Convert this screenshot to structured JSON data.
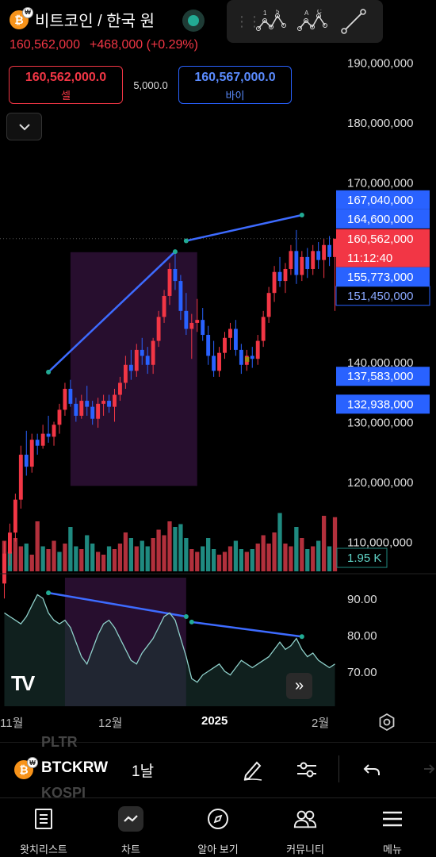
{
  "header": {
    "title": "비트코인 / 한국 원",
    "coin_icon": "bitcoin-krw-icon",
    "last_price": "160,562,000",
    "change": "+468,000 (+0.29%)",
    "market_status_color": "#22ab94"
  },
  "trade": {
    "sell_price": "160,562,000.0",
    "sell_label": "셀",
    "spread": "5,000.0",
    "buy_price": "160,567,000.0",
    "buy_label": "바이"
  },
  "drawing_toolbar": {
    "tools": [
      {
        "name": "xabcd-pattern-tool",
        "labels": [
          "1",
          "5"
        ]
      },
      {
        "name": "abcd-pattern-tool",
        "labels": [
          "A",
          "C"
        ]
      },
      {
        "name": "trend-line-tool"
      }
    ]
  },
  "colors": {
    "up": "#f23645",
    "down": "#2962ff",
    "volume_up": "#b2303c",
    "volume_down": "#1f8a80",
    "trend_line": "#3d6bff",
    "highlight_zone": "#2b0f33",
    "rsi_line": "#8ecfc9",
    "background": "#000000"
  },
  "chart_data": {
    "type": "candlestick",
    "price_axis": {
      "ticks": [
        "190,000,000",
        "180,000,000",
        "170,000,000",
        "140,000,000",
        "130,000,000",
        "120,000,000",
        "110,000,000"
      ],
      "tick_values": [
        190000000,
        180000000,
        170000000,
        140000000,
        130000000,
        120000000,
        110000000
      ]
    },
    "price_labels": [
      {
        "text": "167,040,000",
        "value": 167040000,
        "style": "blue"
      },
      {
        "text": "164,600,000",
        "value": 164600000,
        "style": "blue"
      },
      {
        "text": "160,562,000",
        "value": 160562000,
        "style": "red",
        "sub": "11:12:40"
      },
      {
        "text": "155,773,000",
        "value": 155773000,
        "style": "blue"
      },
      {
        "text": "151,450,000",
        "value": 151450000,
        "style": "outline"
      },
      {
        "text": "137,583,000",
        "value": 137583000,
        "style": "blue"
      },
      {
        "text": "132,938,000",
        "value": 132938000,
        "style": "blue"
      }
    ],
    "volume_label": "1.95 K",
    "rsi_axis": {
      "ticks": [
        "90.00",
        "80.00",
        "70.00"
      ],
      "tick_values": [
        90,
        80,
        70
      ]
    },
    "time_axis": {
      "labels": [
        "11월",
        "12월",
        "2025",
        "2월"
      ],
      "bold": [
        false,
        false,
        true,
        false
      ]
    },
    "trend_lines": [
      {
        "pane": "price",
        "from": {
          "i": 8,
          "v": 138300000
        },
        "to": {
          "i": 31,
          "v": 158400000
        }
      },
      {
        "pane": "price",
        "from": {
          "i": 33,
          "v": 160200000
        },
        "to": {
          "i": 54,
          "v": 164500000
        }
      },
      {
        "pane": "rsi",
        "from": {
          "i": 8,
          "v": 91.5
        },
        "to": {
          "i": 33,
          "v": 85
        }
      },
      {
        "pane": "rsi",
        "from": {
          "i": 34,
          "v": 83.5
        },
        "to": {
          "i": 54,
          "v": 79.5
        }
      }
    ],
    "highlight_zones": [
      {
        "pane": "price",
        "from_i": 12,
        "to_i": 35,
        "v_top": 158300000,
        "v_bottom": 119300000
      },
      {
        "pane": "rsi",
        "from_i": 11,
        "to_i": 33
      }
    ],
    "candles": [
      {
        "o": 103000000,
        "h": 110000000,
        "l": 100500000,
        "c": 108000000
      },
      {
        "o": 108000000,
        "h": 113000000,
        "l": 106000000,
        "c": 111500000
      },
      {
        "o": 111500000,
        "h": 118000000,
        "l": 110000000,
        "c": 117000000
      },
      {
        "o": 117000000,
        "h": 126000000,
        "l": 115500000,
        "c": 124500000
      },
      {
        "o": 124500000,
        "h": 128500000,
        "l": 121000000,
        "c": 122500000
      },
      {
        "o": 122500000,
        "h": 128000000,
        "l": 121500000,
        "c": 127000000
      },
      {
        "o": 127000000,
        "h": 128000000,
        "l": 124500000,
        "c": 126000000
      },
      {
        "o": 126000000,
        "h": 129500000,
        "l": 125500000,
        "c": 128000000
      },
      {
        "o": 128000000,
        "h": 131000000,
        "l": 126500000,
        "c": 127500000
      },
      {
        "o": 127500000,
        "h": 130000000,
        "l": 126000000,
        "c": 129500000
      },
      {
        "o": 129500000,
        "h": 133000000,
        "l": 128000000,
        "c": 132000000
      },
      {
        "o": 132000000,
        "h": 136500000,
        "l": 131000000,
        "c": 135500000
      },
      {
        "o": 135500000,
        "h": 137000000,
        "l": 132500000,
        "c": 133000000
      },
      {
        "o": 133000000,
        "h": 134000000,
        "l": 130000000,
        "c": 131000000
      },
      {
        "o": 131000000,
        "h": 134500000,
        "l": 130500000,
        "c": 133500000
      },
      {
        "o": 133500000,
        "h": 136000000,
        "l": 131000000,
        "c": 132500000
      },
      {
        "o": 132500000,
        "h": 133500000,
        "l": 129500000,
        "c": 130500000
      },
      {
        "o": 130500000,
        "h": 134000000,
        "l": 129000000,
        "c": 133000000
      },
      {
        "o": 133000000,
        "h": 134500000,
        "l": 131000000,
        "c": 133500000
      },
      {
        "o": 133500000,
        "h": 134500000,
        "l": 131500000,
        "c": 132500000
      },
      {
        "o": 132500000,
        "h": 135500000,
        "l": 130000000,
        "c": 134500000
      },
      {
        "o": 134500000,
        "h": 137500000,
        "l": 133500000,
        "c": 136500000
      },
      {
        "o": 136500000,
        "h": 141000000,
        "l": 135500000,
        "c": 139500000
      },
      {
        "o": 139500000,
        "h": 142000000,
        "l": 137000000,
        "c": 138500000
      },
      {
        "o": 138500000,
        "h": 143000000,
        "l": 137500000,
        "c": 142000000
      },
      {
        "o": 142000000,
        "h": 144000000,
        "l": 139500000,
        "c": 141000000
      },
      {
        "o": 141000000,
        "h": 142500000,
        "l": 138000000,
        "c": 139500000
      },
      {
        "o": 139500000,
        "h": 144000000,
        "l": 138000000,
        "c": 143500000
      },
      {
        "o": 143500000,
        "h": 148500000,
        "l": 142500000,
        "c": 147500000
      },
      {
        "o": 147500000,
        "h": 152000000,
        "l": 146500000,
        "c": 151000000
      },
      {
        "o": 151000000,
        "h": 156500000,
        "l": 149500000,
        "c": 155500000
      },
      {
        "o": 155500000,
        "h": 158000000,
        "l": 152000000,
        "c": 153500000
      },
      {
        "o": 153500000,
        "h": 154500000,
        "l": 147000000,
        "c": 148500000
      },
      {
        "o": 148500000,
        "h": 151500000,
        "l": 144500000,
        "c": 145500000
      },
      {
        "o": 145500000,
        "h": 148000000,
        "l": 140500000,
        "c": 146500000
      },
      {
        "o": 146500000,
        "h": 150500000,
        "l": 145000000,
        "c": 147000000
      },
      {
        "o": 147000000,
        "h": 149000000,
        "l": 143500000,
        "c": 144500000
      },
      {
        "o": 144500000,
        "h": 146000000,
        "l": 139500000,
        "c": 141000000
      },
      {
        "o": 141000000,
        "h": 143500000,
        "l": 137500000,
        "c": 138500000
      },
      {
        "o": 138500000,
        "h": 142500000,
        "l": 137500000,
        "c": 141500000
      },
      {
        "o": 141500000,
        "h": 145000000,
        "l": 140500000,
        "c": 144000000
      },
      {
        "o": 144000000,
        "h": 146500000,
        "l": 142000000,
        "c": 145500000
      },
      {
        "o": 145500000,
        "h": 147000000,
        "l": 141000000,
        "c": 142000000
      },
      {
        "o": 142000000,
        "h": 143000000,
        "l": 138000000,
        "c": 139500000
      },
      {
        "o": 139500000,
        "h": 142000000,
        "l": 138500000,
        "c": 141000000
      },
      {
        "o": 141000000,
        "h": 142500000,
        "l": 139000000,
        "c": 140500000
      },
      {
        "o": 140500000,
        "h": 144500000,
        "l": 139500000,
        "c": 143500000
      },
      {
        "o": 143500000,
        "h": 148500000,
        "l": 142500000,
        "c": 147500000
      },
      {
        "o": 147500000,
        "h": 152500000,
        "l": 146500000,
        "c": 151500000
      },
      {
        "o": 151500000,
        "h": 156000000,
        "l": 150000000,
        "c": 155000000
      },
      {
        "o": 155000000,
        "h": 157500000,
        "l": 152500000,
        "c": 153500000
      },
      {
        "o": 153500000,
        "h": 156500000,
        "l": 151500000,
        "c": 155500000
      },
      {
        "o": 155500000,
        "h": 159500000,
        "l": 154500000,
        "c": 158500000
      },
      {
        "o": 158500000,
        "h": 162000000,
        "l": 153000000,
        "c": 154500000
      },
      {
        "o": 154500000,
        "h": 158500000,
        "l": 153500000,
        "c": 157500000
      },
      {
        "o": 157500000,
        "h": 159000000,
        "l": 154000000,
        "c": 155500000
      },
      {
        "o": 155500000,
        "h": 159500000,
        "l": 154500000,
        "c": 158500000
      },
      {
        "o": 158500000,
        "h": 160000000,
        "l": 155500000,
        "c": 157000000
      },
      {
        "o": 157000000,
        "h": 160500000,
        "l": 154000000,
        "c": 159500000
      },
      {
        "o": 159500000,
        "h": 161000000,
        "l": 156000000,
        "c": 157500000
      },
      {
        "o": 157500000,
        "h": 160500000,
        "l": 148500000,
        "c": 160562000
      }
    ],
    "volume": [
      {
        "v": 1.1,
        "up": true
      },
      {
        "v": 0.7,
        "up": false
      },
      {
        "v": 1.2,
        "up": true
      },
      {
        "v": 0.9,
        "up": true
      },
      {
        "v": 1.0,
        "up": false
      },
      {
        "v": 0.6,
        "up": true
      },
      {
        "v": 1.8,
        "up": true
      },
      {
        "v": 0.9,
        "up": false
      },
      {
        "v": 0.8,
        "up": true
      },
      {
        "v": 1.1,
        "up": true
      },
      {
        "v": 0.7,
        "up": false
      },
      {
        "v": 1.0,
        "up": true
      },
      {
        "v": 1.6,
        "up": false
      },
      {
        "v": 0.9,
        "up": false
      },
      {
        "v": 0.8,
        "up": true
      },
      {
        "v": 1.3,
        "up": false
      },
      {
        "v": 1.0,
        "up": false
      },
      {
        "v": 0.7,
        "up": true
      },
      {
        "v": 0.6,
        "up": true
      },
      {
        "v": 0.9,
        "up": false
      },
      {
        "v": 0.8,
        "up": true
      },
      {
        "v": 1.0,
        "up": true
      },
      {
        "v": 1.4,
        "up": true
      },
      {
        "v": 1.2,
        "up": false
      },
      {
        "v": 0.9,
        "up": true
      },
      {
        "v": 1.1,
        "up": false
      },
      {
        "v": 0.9,
        "up": false
      },
      {
        "v": 1.2,
        "up": true
      },
      {
        "v": 1.5,
        "up": true
      },
      {
        "v": 1.3,
        "up": true
      },
      {
        "v": 1.8,
        "up": true
      },
      {
        "v": 1.6,
        "up": false
      },
      {
        "v": 1.7,
        "up": false
      },
      {
        "v": 1.2,
        "up": false
      },
      {
        "v": 0.8,
        "up": true
      },
      {
        "v": 0.7,
        "up": true
      },
      {
        "v": 0.9,
        "up": false
      },
      {
        "v": 1.2,
        "up": false
      },
      {
        "v": 0.8,
        "up": false
      },
      {
        "v": 0.6,
        "up": true
      },
      {
        "v": 0.7,
        "up": true
      },
      {
        "v": 0.9,
        "up": true
      },
      {
        "v": 1.1,
        "up": false
      },
      {
        "v": 0.8,
        "up": false
      },
      {
        "v": 0.7,
        "up": true
      },
      {
        "v": 0.8,
        "up": false
      },
      {
        "v": 1.0,
        "up": true
      },
      {
        "v": 1.3,
        "up": true
      },
      {
        "v": 1.0,
        "up": true
      },
      {
        "v": 1.4,
        "up": true
      },
      {
        "v": 2.1,
        "up": false
      },
      {
        "v": 1.0,
        "up": true
      },
      {
        "v": 0.9,
        "up": true
      },
      {
        "v": 1.6,
        "up": false
      },
      {
        "v": 1.2,
        "up": true
      },
      {
        "v": 0.8,
        "up": false
      },
      {
        "v": 0.9,
        "up": true
      },
      {
        "v": 1.1,
        "up": false
      },
      {
        "v": 2.0,
        "up": true
      },
      {
        "v": 0.9,
        "up": false
      },
      {
        "v": 1.95,
        "up": true
      }
    ],
    "rsi": [
      86,
      85,
      84,
      83,
      85,
      88,
      91,
      90,
      86,
      84,
      83,
      84,
      82,
      78,
      74,
      72,
      76,
      80,
      83,
      84,
      82,
      79,
      76,
      73,
      72,
      75,
      77,
      79,
      82,
      85,
      86,
      84,
      79,
      74,
      68,
      67,
      69,
      70,
      71,
      72,
      70,
      69,
      71,
      73,
      72,
      71,
      72,
      73,
      74,
      76,
      78,
      76,
      77,
      79,
      76,
      74,
      75,
      73,
      72,
      71,
      72
    ]
  },
  "symbol_bar": {
    "symbol": "BTCKRW",
    "timeframe": "1날",
    "ghost_above": "PLTR",
    "ghost_below": "KOSPI"
  },
  "nav": [
    {
      "label": "왓치리스트",
      "icon": "watchlist-icon"
    },
    {
      "label": "차트",
      "icon": "chart-icon",
      "active": true
    },
    {
      "label": "알아 보기",
      "icon": "compass-icon"
    },
    {
      "label": "커뮤니티",
      "icon": "community-icon"
    },
    {
      "label": "메뉴",
      "icon": "menu-icon"
    }
  ]
}
